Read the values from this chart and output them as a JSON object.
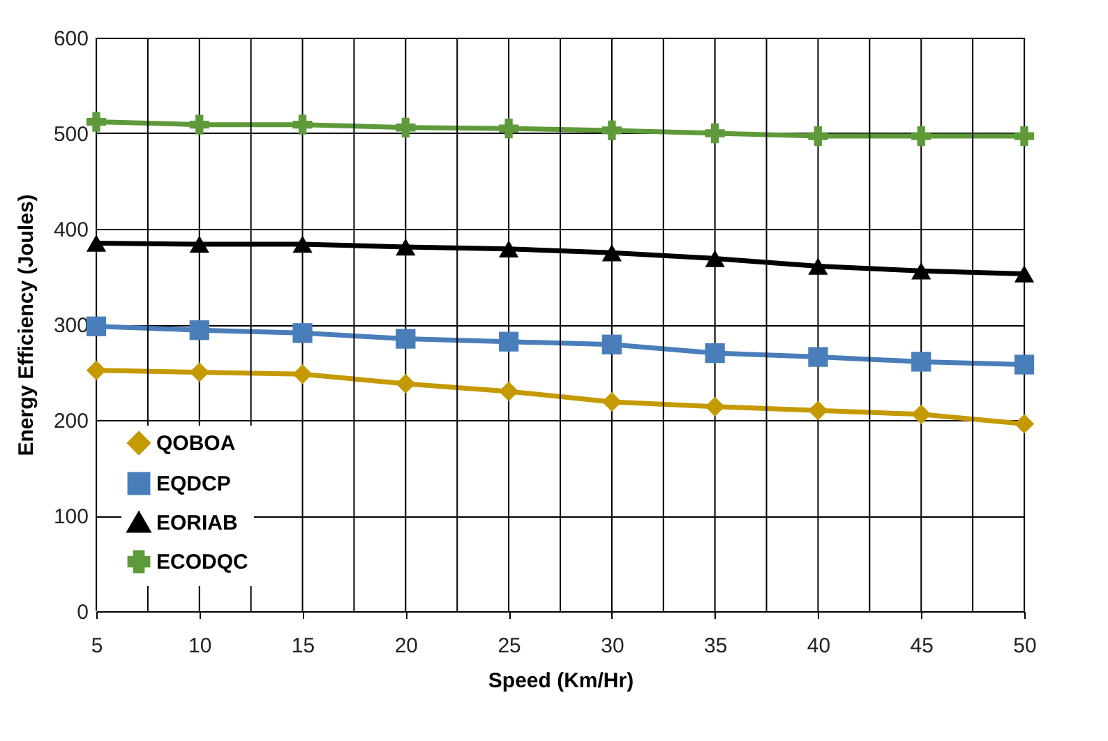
{
  "chart_data": {
    "type": "line",
    "xlabel": "Speed (Km/Hr)",
    "ylabel": "Energy Efficiency (Joules)",
    "x": [
      5,
      10,
      15,
      20,
      25,
      30,
      35,
      40,
      45,
      50
    ],
    "series": [
      {
        "name": "QOBOA",
        "color": "#c49a00",
        "marker": "diamond",
        "values": [
          252,
          250,
          248,
          238,
          230,
          219,
          214,
          210,
          206,
          196
        ]
      },
      {
        "name": "EQDCP",
        "color": "#4a7ebb",
        "marker": "square",
        "values": [
          298,
          294,
          291,
          285,
          282,
          279,
          270,
          266,
          261,
          258
        ]
      },
      {
        "name": "EORIAB",
        "color": "#000000",
        "marker": "triangle",
        "values": [
          385,
          384,
          384,
          381,
          379,
          375,
          369,
          361,
          356,
          353
        ]
      },
      {
        "name": "ECODQC",
        "color": "#5f9a3a",
        "marker": "cross",
        "values": [
          512,
          509,
          509,
          506,
          505,
          503,
          500,
          497,
          497,
          497
        ]
      }
    ],
    "xlim": [
      5,
      50
    ],
    "xticks": [
      5,
      {
        "value": 7.5,
        "label": null
      },
      10,
      {
        "value": 12.5,
        "label": null
      },
      15,
      {
        "value": 17.5,
        "label": null
      },
      20,
      {
        "value": 22.5,
        "label": null
      },
      25,
      {
        "value": 27.5,
        "label": null
      },
      30,
      {
        "value": 32.5,
        "label": null
      },
      35,
      {
        "value": 37.5,
        "label": null
      },
      40,
      {
        "value": 42.5,
        "label": null
      },
      45,
      {
        "value": 47.5,
        "label": null
      },
      50
    ],
    "ylim": [
      0,
      600
    ],
    "yticks": [
      0,
      100,
      200,
      300,
      400,
      500,
      600
    ],
    "grid": true,
    "legend": "bottom left",
    "line_style": "solid"
  }
}
